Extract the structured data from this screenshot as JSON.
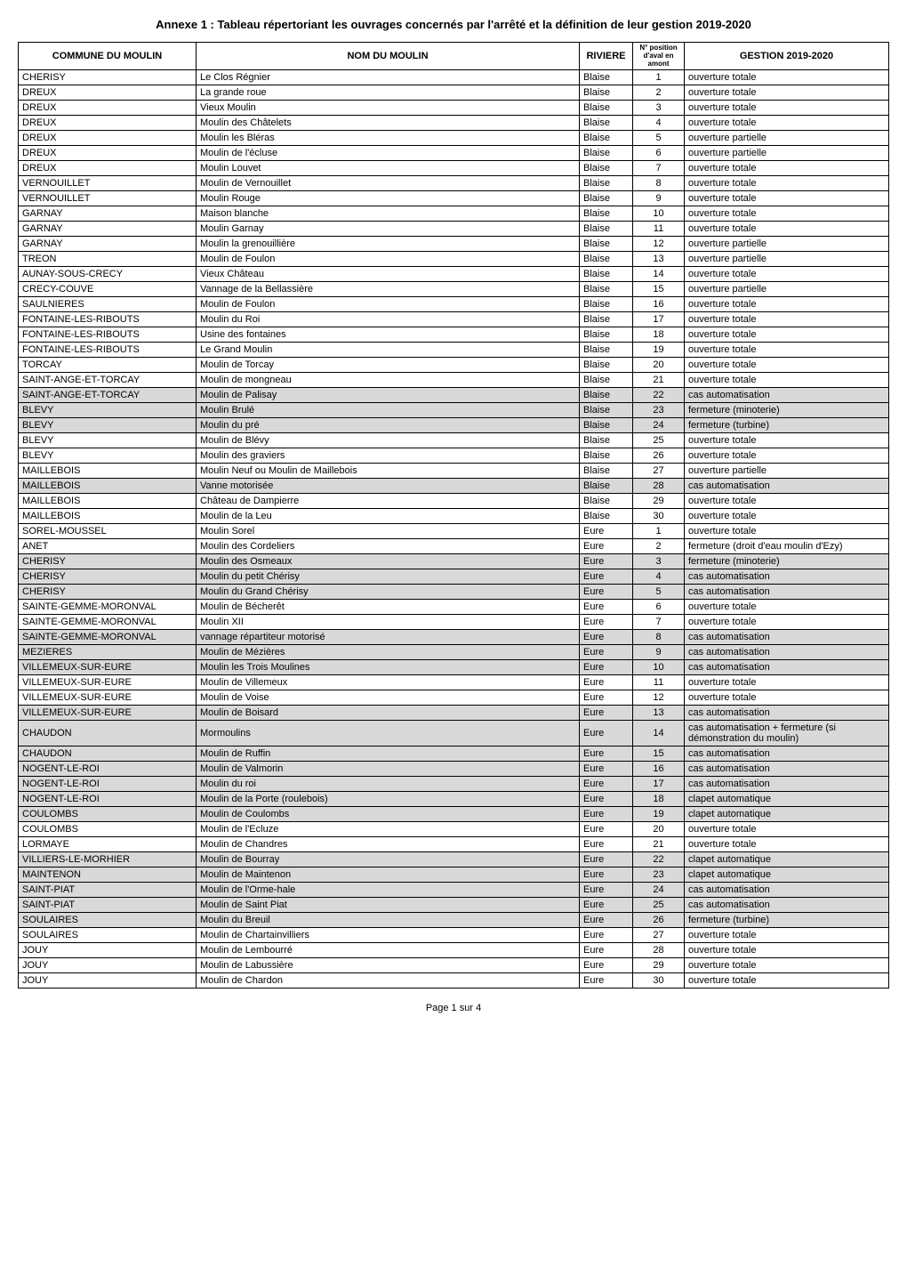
{
  "title": "Annexe 1 : Tableau répertoriant  les ouvrages concernés par l'arrêté et la définition de leur gestion 2019-2020",
  "columns": {
    "commune": "COMMUNE DU MOULIN",
    "nom": "NOM DU MOULIN",
    "riviere": "RIVIERE",
    "position": "N° position d'aval en amont",
    "gestion": "GESTION 2019-2020"
  },
  "footer": "Page 1 sur 4",
  "shaded_bg": "#d9d9d9",
  "rows": [
    {
      "commune": "CHERISY",
      "nom": "Le Clos Régnier",
      "riviere": "Blaise",
      "pos": "1",
      "gestion": "ouverture  totale",
      "shaded": false
    },
    {
      "commune": "DREUX",
      "nom": "La grande roue",
      "riviere": "Blaise",
      "pos": "2",
      "gestion": "ouverture  totale",
      "shaded": false
    },
    {
      "commune": "DREUX",
      "nom": "Vieux Moulin",
      "riviere": "Blaise",
      "pos": "3",
      "gestion": "ouverture  totale",
      "shaded": false
    },
    {
      "commune": "DREUX",
      "nom": "Moulin des Châtelets",
      "riviere": "Blaise",
      "pos": "4",
      "gestion": "ouverture  totale",
      "shaded": false
    },
    {
      "commune": "DREUX",
      "nom": "Moulin les Bléras",
      "riviere": "Blaise",
      "pos": "5",
      "gestion": "ouverture partielle",
      "shaded": false
    },
    {
      "commune": "DREUX",
      "nom": "Moulin de l'écluse",
      "riviere": "Blaise",
      "pos": "6",
      "gestion": "ouverture partielle",
      "shaded": false
    },
    {
      "commune": "DREUX",
      "nom": "Moulin Louvet",
      "riviere": "Blaise",
      "pos": "7",
      "gestion": "ouverture  totale",
      "shaded": false
    },
    {
      "commune": "VERNOUILLET",
      "nom": "Moulin de Vernouillet",
      "riviere": "Blaise",
      "pos": "8",
      "gestion": "ouverture  totale",
      "shaded": false
    },
    {
      "commune": "VERNOUILLET",
      "nom": "Moulin Rouge",
      "riviere": "Blaise",
      "pos": "9",
      "gestion": "ouverture  totale",
      "shaded": false
    },
    {
      "commune": "GARNAY",
      "nom": "Maison blanche",
      "riviere": "Blaise",
      "pos": "10",
      "gestion": "ouverture  totale",
      "shaded": false
    },
    {
      "commune": "GARNAY",
      "nom": "Moulin Garnay",
      "riviere": "Blaise",
      "pos": "11",
      "gestion": "ouverture  totale",
      "shaded": false
    },
    {
      "commune": "GARNAY",
      "nom": "Moulin la grenouillière",
      "riviere": "Blaise",
      "pos": "12",
      "gestion": "ouverture partielle",
      "shaded": false
    },
    {
      "commune": "TREON",
      "nom": "Moulin de Foulon",
      "riviere": "Blaise",
      "pos": "13",
      "gestion": "ouverture partielle",
      "shaded": false
    },
    {
      "commune": "AUNAY-SOUS-CRECY",
      "nom": "Vieux Château",
      "riviere": "Blaise",
      "pos": "14",
      "gestion": "ouverture  totale",
      "shaded": false
    },
    {
      "commune": "CRECY-COUVE",
      "nom": "Vannage de la Bellassière",
      "riviere": "Blaise",
      "pos": "15",
      "gestion": "ouverture partielle",
      "shaded": false
    },
    {
      "commune": "SAULNIERES",
      "nom": "Moulin de Foulon",
      "riviere": "Blaise",
      "pos": "16",
      "gestion": "ouverture  totale",
      "shaded": false
    },
    {
      "commune": "FONTAINE-LES-RIBOUTS",
      "nom": "Moulin du Roi",
      "riviere": "Blaise",
      "pos": "17",
      "gestion": "ouverture  totale",
      "shaded": false
    },
    {
      "commune": "FONTAINE-LES-RIBOUTS",
      "nom": "Usine des fontaines",
      "riviere": "Blaise",
      "pos": "18",
      "gestion": "ouverture  totale",
      "shaded": false
    },
    {
      "commune": "FONTAINE-LES-RIBOUTS",
      "nom": "Le Grand Moulin",
      "riviere": "Blaise",
      "pos": "19",
      "gestion": "ouverture  totale",
      "shaded": false
    },
    {
      "commune": "TORCAY",
      "nom": "Moulin de Torcay",
      "riviere": "Blaise",
      "pos": "20",
      "gestion": "ouverture  totale",
      "shaded": false
    },
    {
      "commune": "SAINT-ANGE-ET-TORCAY",
      "nom": "Moulin de mongneau",
      "riviere": "Blaise",
      "pos": "21",
      "gestion": "ouverture  totale",
      "shaded": false
    },
    {
      "commune": "SAINT-ANGE-ET-TORCAY",
      "nom": "Moulin de Palisay",
      "riviere": "Blaise",
      "pos": "22",
      "gestion": "cas automatisation",
      "shaded": true
    },
    {
      "commune": "BLEVY",
      "nom": "Moulin Brulé",
      "riviere": "Blaise",
      "pos": "23",
      "gestion": "fermeture (minoterie)",
      "shaded": true
    },
    {
      "commune": "BLEVY",
      "nom": "Moulin du pré",
      "riviere": "Blaise",
      "pos": "24",
      "gestion": "fermeture (turbine)",
      "shaded": true
    },
    {
      "commune": "BLEVY",
      "nom": "Moulin de Blévy",
      "riviere": "Blaise",
      "pos": "25",
      "gestion": "ouverture  totale",
      "shaded": false
    },
    {
      "commune": "BLEVY",
      "nom": "Moulin des graviers",
      "riviere": "Blaise",
      "pos": "26",
      "gestion": "ouverture  totale",
      "shaded": false
    },
    {
      "commune": "MAILLEBOIS",
      "nom": "Moulin Neuf ou Moulin de Maillebois",
      "riviere": "Blaise",
      "pos": "27",
      "gestion": "ouverture  partielle",
      "shaded": false
    },
    {
      "commune": "MAILLEBOIS",
      "nom": "Vanne motorisée",
      "riviere": "Blaise",
      "pos": "28",
      "gestion": "cas automatisation",
      "shaded": true
    },
    {
      "commune": "MAILLEBOIS",
      "nom": "Château de Dampierre",
      "riviere": "Blaise",
      "pos": "29",
      "gestion": "ouverture  totale",
      "shaded": false
    },
    {
      "commune": "MAILLEBOIS",
      "nom": "Moulin de la Leu",
      "riviere": "Blaise",
      "pos": "30",
      "gestion": "ouverture  totale",
      "shaded": false
    },
    {
      "commune": "SOREL-MOUSSEL",
      "nom": "Moulin Sorel",
      "riviere": "Eure",
      "pos": "1",
      "gestion": "ouverture  totale",
      "shaded": false
    },
    {
      "commune": "ANET",
      "nom": "Moulin des Cordeliers",
      "riviere": "Eure",
      "pos": "2",
      "gestion": "fermeture (droit d'eau moulin d'Ezy)",
      "shaded": false
    },
    {
      "commune": "CHERISY",
      "nom": "Moulin des Osmeaux",
      "riviere": "Eure",
      "pos": "3",
      "gestion": "fermeture (minoterie)",
      "shaded": true
    },
    {
      "commune": "CHERISY",
      "nom": "Moulin du petit Chérisy",
      "riviere": "Eure",
      "pos": "4",
      "gestion": "cas automatisation",
      "shaded": true
    },
    {
      "commune": "CHERISY",
      "nom": "Moulin du Grand Chérisy",
      "riviere": "Eure",
      "pos": "5",
      "gestion": "cas automatisation",
      "shaded": true
    },
    {
      "commune": "SAINTE-GEMME-MORONVAL",
      "nom": "Moulin de Bécherêt",
      "riviere": "Eure",
      "pos": "6",
      "gestion": "ouverture  totale",
      "shaded": false
    },
    {
      "commune": "SAINTE-GEMME-MORONVAL",
      "nom": "Moulin XII",
      "riviere": "Eure",
      "pos": "7",
      "gestion": "ouverture  totale",
      "shaded": false
    },
    {
      "commune": "SAINTE-GEMME-MORONVAL",
      "nom": "vannage répartiteur motorisé",
      "riviere": "Eure",
      "pos": "8",
      "gestion": "cas automatisation",
      "shaded": true
    },
    {
      "commune": "MEZIERES",
      "nom": "Moulin de Mézières",
      "riviere": "Eure",
      "pos": "9",
      "gestion": "cas automatisation",
      "shaded": true
    },
    {
      "commune": "VILLEMEUX-SUR-EURE",
      "nom": "Moulin les Trois Moulines",
      "riviere": "Eure",
      "pos": "10",
      "gestion": "cas automatisation",
      "shaded": true
    },
    {
      "commune": "VILLEMEUX-SUR-EURE",
      "nom": "Moulin de Villemeux",
      "riviere": "Eure",
      "pos": "11",
      "gestion": "ouverture  totale",
      "shaded": false
    },
    {
      "commune": "VILLEMEUX-SUR-EURE",
      "nom": "Moulin de Voise",
      "riviere": "Eure",
      "pos": "12",
      "gestion": "ouverture  totale",
      "shaded": false
    },
    {
      "commune": "VILLEMEUX-SUR-EURE",
      "nom": "Moulin de Boisard",
      "riviere": "Eure",
      "pos": "13",
      "gestion": "cas automatisation",
      "shaded": true
    },
    {
      "commune": "CHAUDON",
      "nom": "Mormoulins",
      "riviere": "Eure",
      "pos": "14",
      "gestion": "cas automatisation + fermeture (si démonstration du moulin)",
      "shaded": true
    },
    {
      "commune": "CHAUDON",
      "nom": "Moulin de Ruffin",
      "riviere": "Eure",
      "pos": "15",
      "gestion": "cas automatisation",
      "shaded": true
    },
    {
      "commune": "NOGENT-LE-ROI",
      "nom": "Moulin de Valmorin",
      "riviere": "Eure",
      "pos": "16",
      "gestion": "cas automatisation",
      "shaded": true
    },
    {
      "commune": "NOGENT-LE-ROI",
      "nom": "Moulin du roi",
      "riviere": "Eure",
      "pos": "17",
      "gestion": "cas automatisation",
      "shaded": true
    },
    {
      "commune": "NOGENT-LE-ROI",
      "nom": "Moulin de la Porte (roulebois)",
      "riviere": "Eure",
      "pos": "18",
      "gestion": "clapet automatique",
      "shaded": true
    },
    {
      "commune": "COULOMBS",
      "nom": "Moulin de Coulombs",
      "riviere": "Eure",
      "pos": "19",
      "gestion": "clapet automatique",
      "shaded": true
    },
    {
      "commune": "COULOMBS",
      "nom": "Moulin de l'Ecluze",
      "riviere": "Eure",
      "pos": "20",
      "gestion": "ouverture  totale",
      "shaded": false
    },
    {
      "commune": "LORMAYE",
      "nom": "Moulin de Chandres",
      "riviere": "Eure",
      "pos": "21",
      "gestion": "ouverture  totale",
      "shaded": false
    },
    {
      "commune": "VILLIERS-LE-MORHIER",
      "nom": "Moulin de Bourray",
      "riviere": "Eure",
      "pos": "22",
      "gestion": "clapet automatique",
      "shaded": true
    },
    {
      "commune": "MAINTENON",
      "nom": "Moulin de Maintenon",
      "riviere": "Eure",
      "pos": "23",
      "gestion": "clapet automatique",
      "shaded": true
    },
    {
      "commune": "SAINT-PIAT",
      "nom": "Moulin de l'Orme-hale",
      "riviere": "Eure",
      "pos": "24",
      "gestion": "cas automatisation",
      "shaded": true
    },
    {
      "commune": "SAINT-PIAT",
      "nom": "Moulin de Saint Piat",
      "riviere": "Eure",
      "pos": "25",
      "gestion": "cas automatisation",
      "shaded": true
    },
    {
      "commune": "SOULAIRES",
      "nom": "Moulin du Breuil",
      "riviere": "Eure",
      "pos": "26",
      "gestion": "fermeture (turbine)",
      "shaded": true
    },
    {
      "commune": "SOULAIRES",
      "nom": "Moulin de Chartainvilliers",
      "riviere": "Eure",
      "pos": "27",
      "gestion": "ouverture  totale",
      "shaded": false
    },
    {
      "commune": "JOUY",
      "nom": "Moulin de Lembourré",
      "riviere": "Eure",
      "pos": "28",
      "gestion": "ouverture  totale",
      "shaded": false
    },
    {
      "commune": "JOUY",
      "nom": "Moulin de Labussière",
      "riviere": "Eure",
      "pos": "29",
      "gestion": "ouverture  totale",
      "shaded": false
    },
    {
      "commune": "JOUY",
      "nom": "Moulin de Chardon",
      "riviere": "Eure",
      "pos": "30",
      "gestion": "ouverture  totale",
      "shaded": false
    }
  ]
}
